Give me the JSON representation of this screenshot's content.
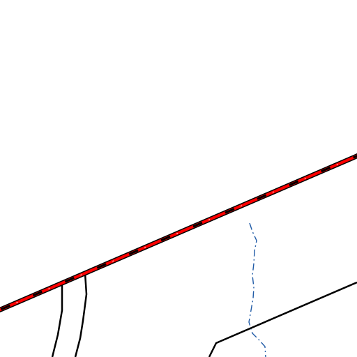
{
  "map": {
    "background_color": "#ffffff",
    "features": {
      "railway": {
        "kind": "railway",
        "casing_color": "#000000",
        "center_color": "#ff0000",
        "tie_color": "#000000"
      },
      "roads": {
        "kind": "road",
        "color": "#000000"
      },
      "stream": {
        "kind": "stream",
        "color": "#1f5aa6",
        "style": "dash-dot"
      }
    }
  }
}
